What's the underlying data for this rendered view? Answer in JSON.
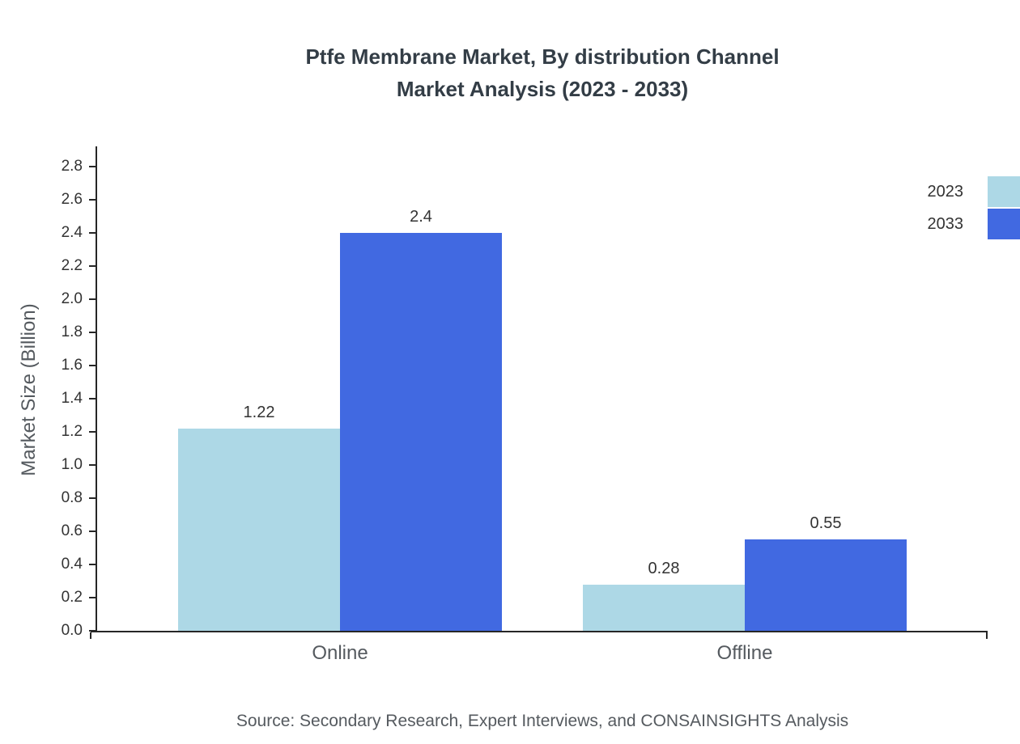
{
  "title": {
    "line1": "Ptfe Membrane Market, By distribution Channel",
    "line2": "Market Analysis (2023 - 2033)"
  },
  "source": "Source: Secondary Research, Expert Interviews, and CONSAINSIGHTS Analysis",
  "legend": {
    "items": [
      {
        "label": "2023",
        "color": "#add8e6"
      },
      {
        "label": "2033",
        "color": "#4169e1"
      }
    ]
  },
  "chart_data": {
    "type": "bar",
    "title": "Ptfe Membrane Market, By distribution Channel Market Analysis (2023 - 2033)",
    "categories": [
      "Online",
      "Offline"
    ],
    "series": [
      {
        "name": "2023",
        "color": "#add8e6",
        "values": [
          1.22,
          0.28
        ]
      },
      {
        "name": "2033",
        "color": "#4169e1",
        "values": [
          2.4,
          0.55
        ]
      }
    ],
    "xlabel": "",
    "ylabel": "Market Size (Billion)",
    "ylim": [
      0,
      2.9
    ],
    "yticks": [
      0.0,
      0.2,
      0.4,
      0.6,
      0.8,
      1.0,
      1.2,
      1.4,
      1.6,
      1.8,
      2.0,
      2.2,
      2.4,
      2.6,
      2.8
    ],
    "grid": false,
    "legend_position": "top-right",
    "value_labels": [
      "1.22",
      "2.4",
      "0.28",
      "0.55"
    ]
  }
}
